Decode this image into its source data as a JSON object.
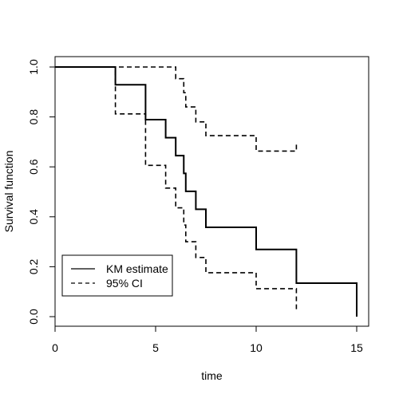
{
  "chart_data": {
    "type": "line",
    "title": "",
    "xlabel": "time",
    "ylabel": "Survival function",
    "xlim": [
      0,
      15
    ],
    "ylim": [
      0,
      1
    ],
    "x_ticks": [
      "0",
      "5",
      "10",
      "15"
    ],
    "y_ticks": [
      "0.0",
      "0.2",
      "0.4",
      "0.6",
      "0.8",
      "1.0"
    ],
    "grid": false,
    "legend_position": "bottom-left",
    "series": [
      {
        "name": "KM estimate",
        "line_style": "solid",
        "color": "#000000",
        "steps": [
          {
            "x": 0,
            "y": 1.0
          },
          {
            "x": 3,
            "y": 0.929
          },
          {
            "x": 4.5,
            "y": 0.789
          },
          {
            "x": 5.5,
            "y": 0.717
          },
          {
            "x": 6,
            "y": 0.645
          },
          {
            "x": 6.4,
            "y": 0.574
          },
          {
            "x": 6.5,
            "y": 0.502
          },
          {
            "x": 7,
            "y": 0.43
          },
          {
            "x": 7.5,
            "y": 0.358
          },
          {
            "x": 10,
            "y": 0.269
          },
          {
            "x": 12,
            "y": 0.134
          },
          {
            "x": 15,
            "y": 0.0
          }
        ],
        "end_x": 15
      },
      {
        "name": "95% CI",
        "line_style": "dashed",
        "color": "#000000",
        "steps": [
          {
            "x": 0,
            "y": 1.0
          },
          {
            "x": 3,
            "y": 0.812
          },
          {
            "x": 4.5,
            "y": 0.606
          },
          {
            "x": 5.5,
            "y": 0.515
          },
          {
            "x": 6,
            "y": 0.436
          },
          {
            "x": 6.4,
            "y": 0.367
          },
          {
            "x": 6.5,
            "y": 0.3
          },
          {
            "x": 7,
            "y": 0.237
          },
          {
            "x": 7.5,
            "y": 0.176
          },
          {
            "x": 10,
            "y": 0.112
          },
          {
            "x": 12,
            "y": 0.025
          }
        ],
        "end_x": 12
      },
      {
        "name": "",
        "line_style": "dashed",
        "color": "#000000",
        "steps": [
          {
            "x": 0,
            "y": 1.0
          },
          {
            "x": 6,
            "y": 0.953
          },
          {
            "x": 6.4,
            "y": 0.897
          },
          {
            "x": 6.5,
            "y": 0.84
          },
          {
            "x": 7,
            "y": 0.78
          },
          {
            "x": 7.5,
            "y": 0.725
          },
          {
            "x": 10,
            "y": 0.663
          },
          {
            "x": 12,
            "y": 0.7
          }
        ],
        "end_x": 12
      }
    ],
    "legend": [
      {
        "label": "KM estimate",
        "line_style": "solid"
      },
      {
        "label": "95% CI",
        "line_style": "dashed"
      }
    ]
  }
}
